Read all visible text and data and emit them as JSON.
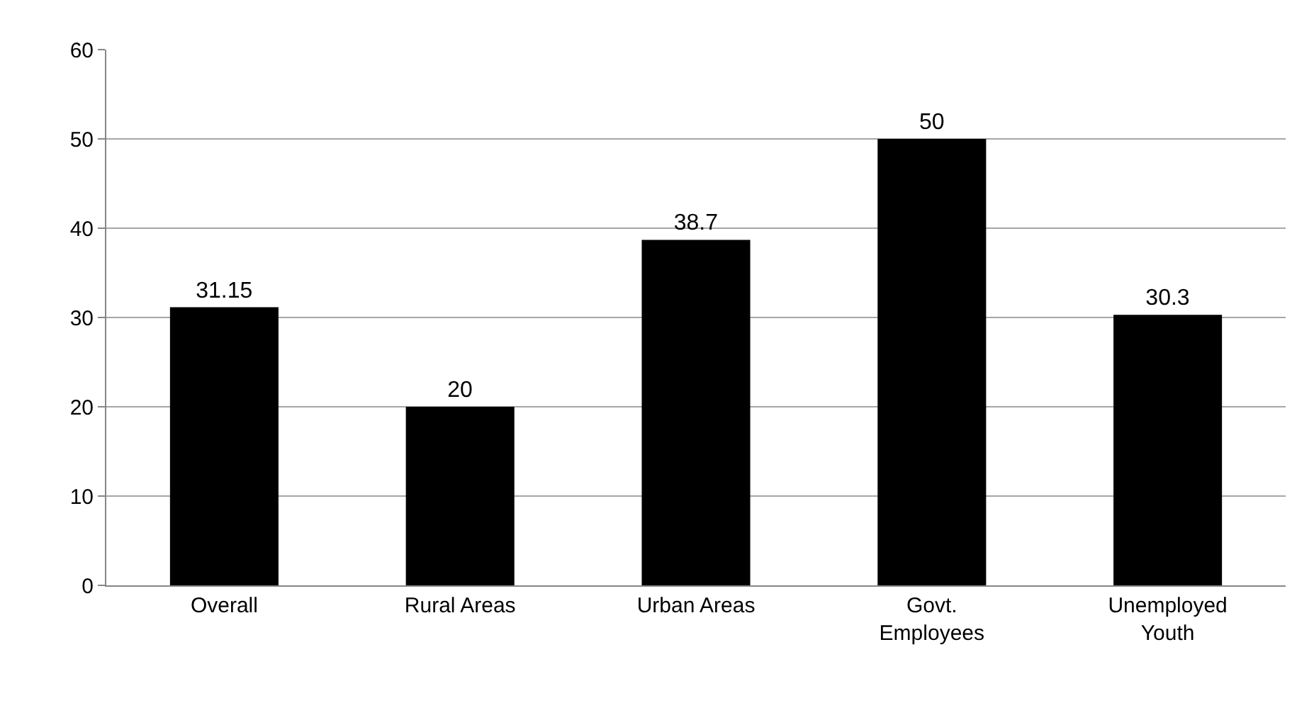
{
  "chart_data": {
    "type": "bar",
    "categories": [
      "Overall",
      "Rural Areas",
      "Urban Areas",
      "Govt.\nEmployees",
      "Unemployed\nYouth"
    ],
    "values": [
      31.15,
      20,
      38.7,
      50,
      30.3
    ],
    "color": "#000000",
    "ylim": [
      0,
      60
    ],
    "yticks": [
      0,
      10,
      20,
      30,
      40,
      50,
      60
    ],
    "grid": "y",
    "data_labels": true,
    "legend": false
  }
}
